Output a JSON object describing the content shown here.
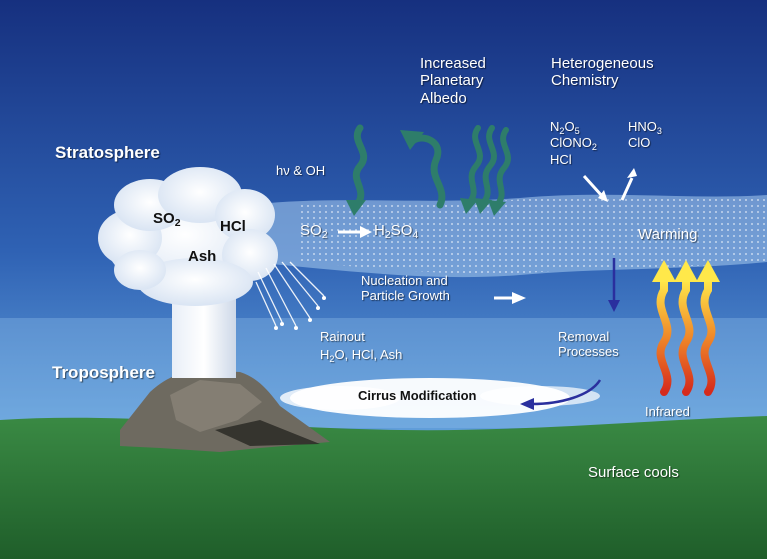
{
  "labels": {
    "stratosphere": "Stratosphere",
    "troposphere": "Troposphere",
    "albedo": [
      "Increased",
      "Planetary",
      "Albedo"
    ],
    "chemistry": [
      "Heterogeneous",
      "Chemistry"
    ],
    "hv_oh": "hν & OH",
    "cloud_so2": "SO",
    "cloud_so2_sub": "2",
    "cloud_hcl": "HCl",
    "cloud_ash": "Ash",
    "so2": "SO",
    "so2_sub": "2",
    "h2so4_a": "H",
    "h2so4_sub1": "2",
    "h2so4_b": "SO",
    "h2so4_sub2": "4",
    "chem_n2o5_a": "N",
    "chem_n2o5_sub1": "2",
    "chem_n2o5_b": "O",
    "chem_n2o5_sub2": "5",
    "chem_clono2_a": "ClONO",
    "chem_clono2_sub": "2",
    "chem_hcl": "HCl",
    "chem_hno3_a": "HNO",
    "chem_hno3_sub": "3",
    "chem_clo": "ClO",
    "warming": "Warming",
    "nucleation": [
      "Nucleation and",
      "Particle Growth"
    ],
    "rainout": "Rainout",
    "rainout_species_a": "H",
    "rainout_species_sub": "2",
    "rainout_species_b": "O, HCl, Ash",
    "removal": [
      "Removal",
      "Processes"
    ],
    "cirrus": "Cirrus Modification",
    "infrared": "Infrared",
    "surface": "Surface cools"
  },
  "colors": {
    "sky_top": "#1a3a8e",
    "sky_bottom": "#5a9ad6",
    "ground": "#2f7d3a",
    "plume_arrow": "#2e7d6a",
    "removal_arrow": "#2a2f9e",
    "ir_yellow": "#ffe84a",
    "ir_red": "#e23b1f"
  }
}
